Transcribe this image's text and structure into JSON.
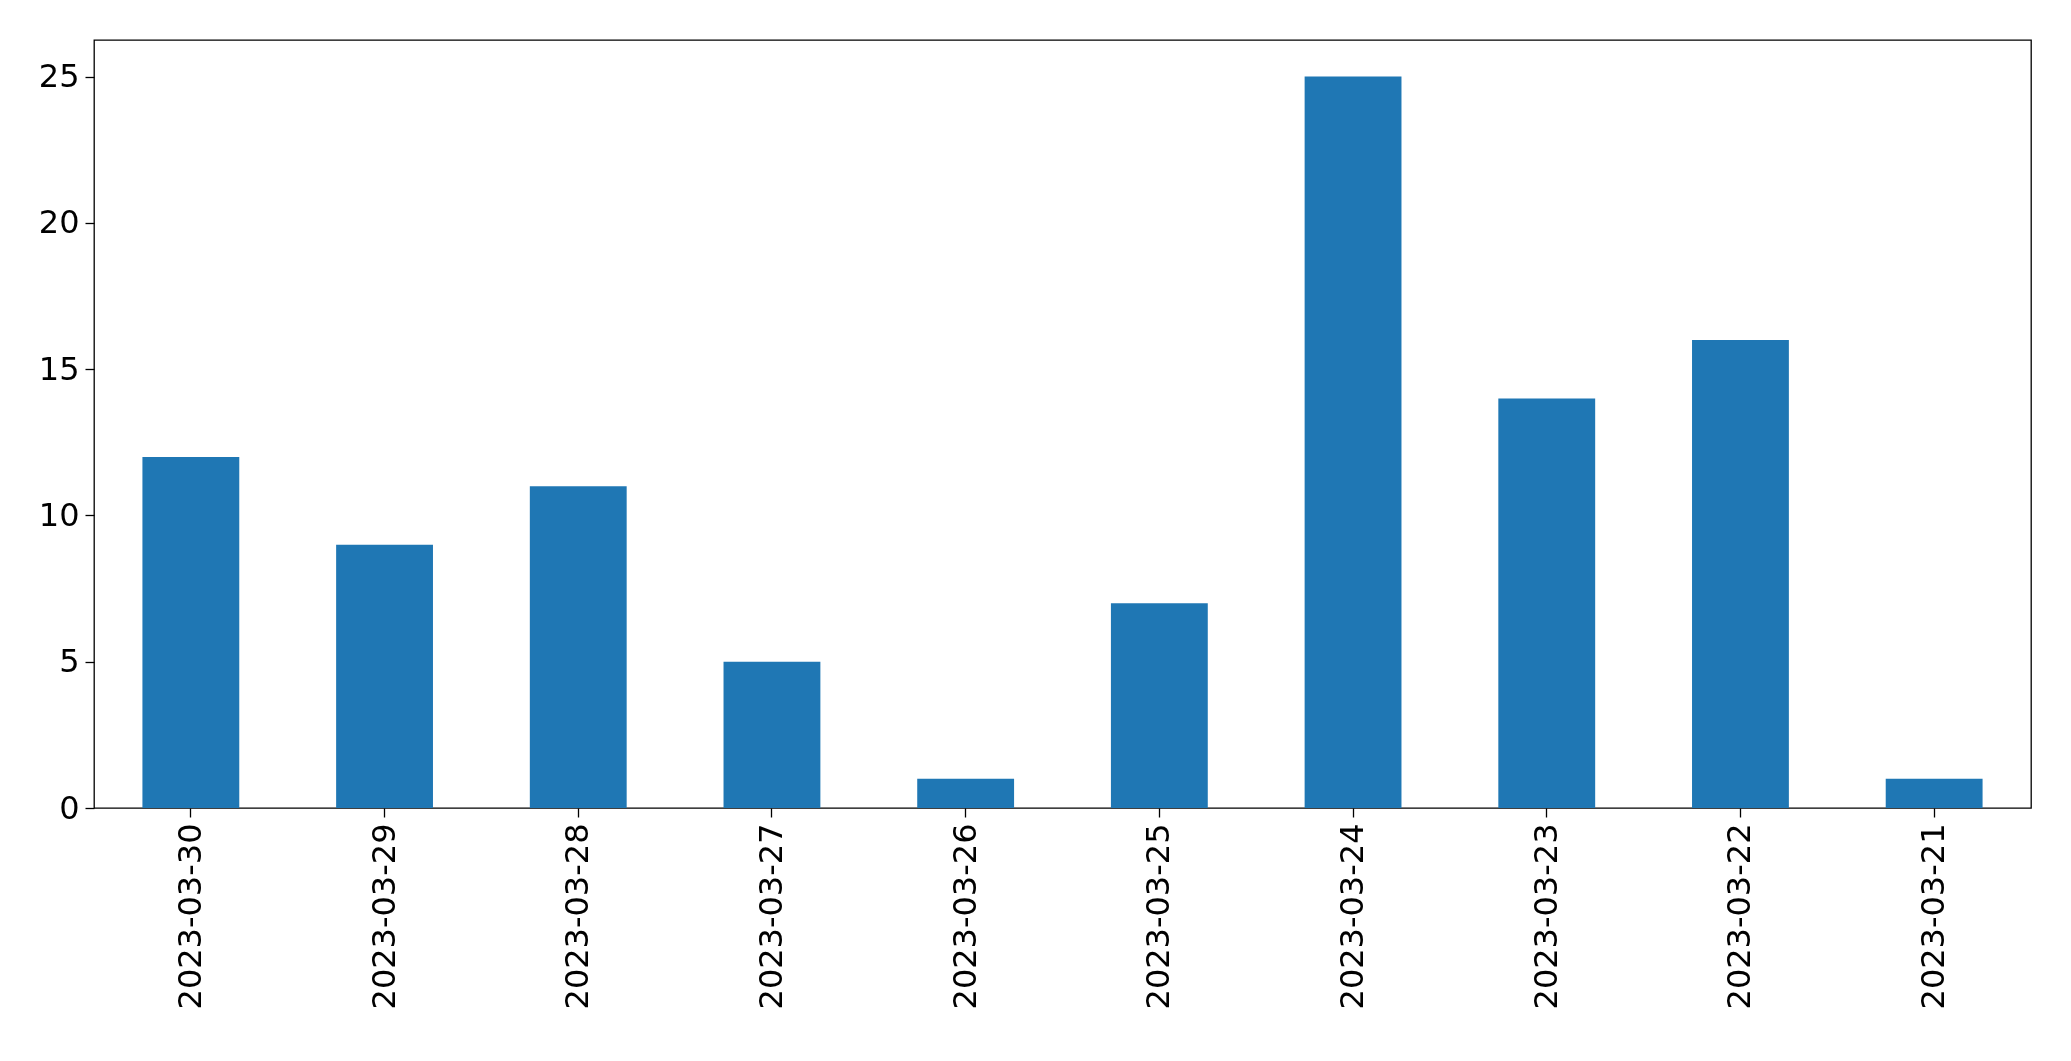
{
  "chart_data": {
    "type": "bar",
    "categories": [
      "2023-03-30",
      "2023-03-29",
      "2023-03-28",
      "2023-03-27",
      "2023-03-26",
      "2023-03-25",
      "2023-03-24",
      "2023-03-23",
      "2023-03-22",
      "2023-03-21"
    ],
    "values": [
      12,
      9,
      11,
      5,
      1,
      7,
      25,
      14,
      16,
      1
    ],
    "color": "#1f77b4",
    "ylim": [
      0,
      26.25
    ],
    "yticks": [
      0,
      5,
      10,
      15,
      20,
      25
    ],
    "grid": false
  }
}
